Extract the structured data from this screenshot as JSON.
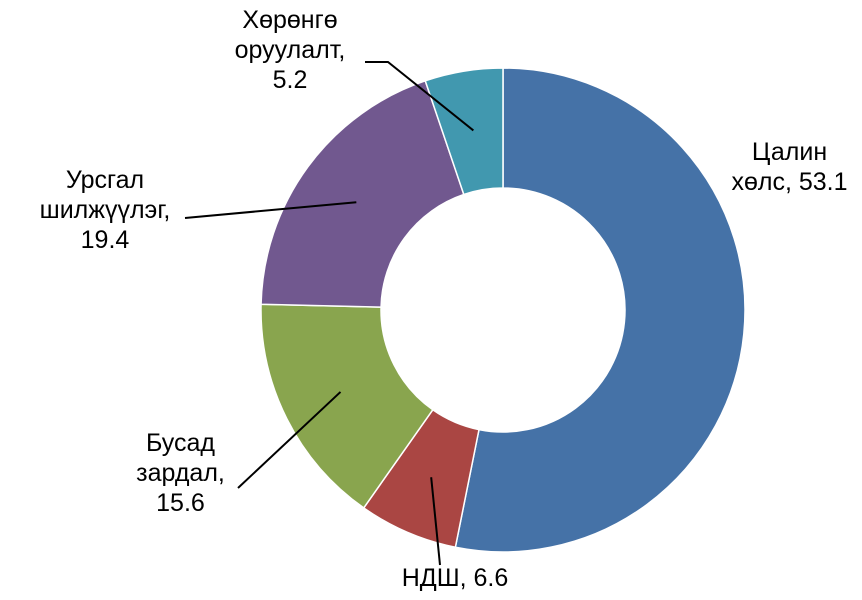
{
  "chart_data": {
    "type": "donut",
    "labels": [
      "Цалин хөлс, 53.1",
      "НДШ, 6.6",
      "Бусад зардал, 15.6",
      "Урсгал шилжүүлэг, 19.4",
      "Хөрөнгө оруулалт, 5.2"
    ],
    "values": [
      53.1,
      6.6,
      15.6,
      19.4,
      5.2
    ],
    "colors": [
      "#4572a7",
      "#aa4643",
      "#89a54e",
      "#71588f",
      "#4198af"
    ]
  }
}
